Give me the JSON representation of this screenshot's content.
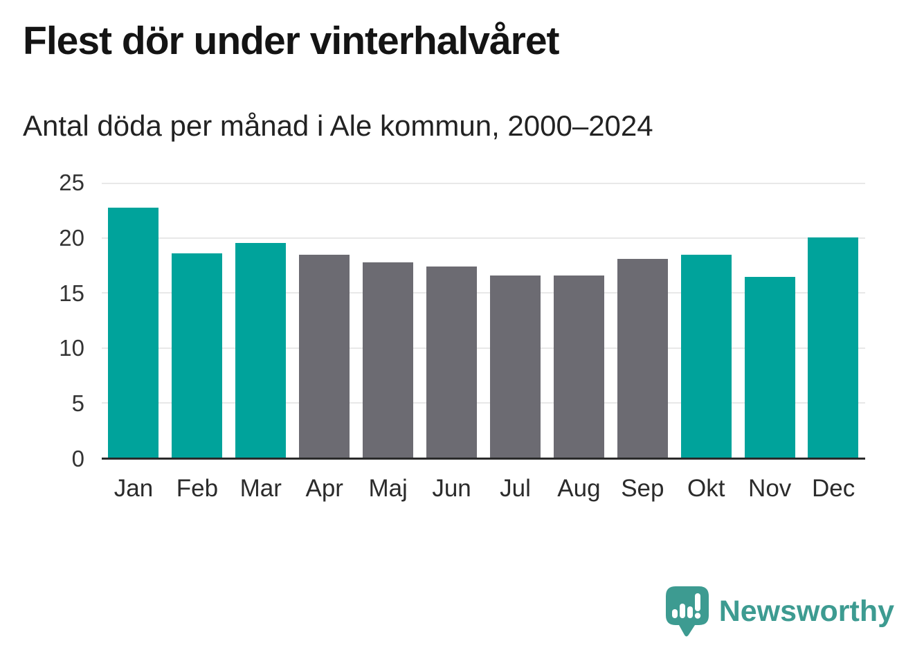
{
  "chart_data": {
    "type": "bar",
    "title": "Flest dör under vinterhalvåret",
    "subtitle": "Antal döda per månad i Ale kommun, 2000–2024",
    "categories": [
      "Jan",
      "Feb",
      "Mar",
      "Apr",
      "Maj",
      "Jun",
      "Jul",
      "Aug",
      "Sep",
      "Okt",
      "Nov",
      "Dec"
    ],
    "values": [
      22.8,
      18.6,
      19.6,
      18.5,
      17.8,
      17.4,
      16.6,
      16.6,
      18.1,
      18.5,
      16.5,
      20.1
    ],
    "highlighted": [
      true,
      true,
      true,
      false,
      false,
      false,
      false,
      false,
      false,
      true,
      true,
      true
    ],
    "xlabel": "",
    "ylabel": "",
    "ylim": [
      0,
      25
    ],
    "yticks": [
      0,
      5,
      10,
      15,
      20,
      25
    ],
    "grid": "horizontal-only",
    "legend": "none",
    "colors": {
      "highlight_teal": "#00a39b",
      "default_gray": "#6c6b72",
      "gridline": "#e8e8e8",
      "axis_line": "#2a2a2a",
      "tick_text": "#333333"
    }
  },
  "footer": {
    "brand": "Newsworthy",
    "brand_color": "#3d9b91",
    "logo_icon": "newsworthy-speech-bubble-bar-chart-icon"
  }
}
